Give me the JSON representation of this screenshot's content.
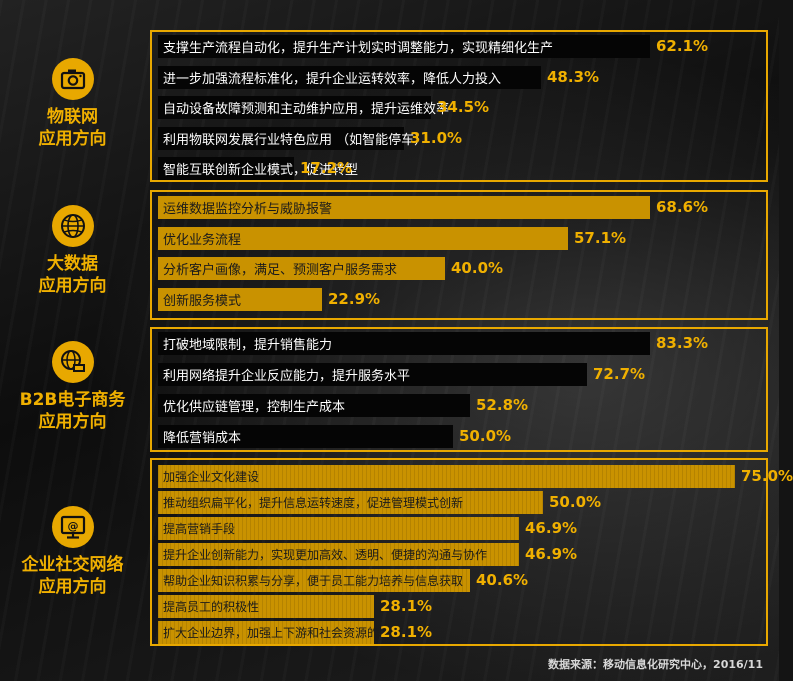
{
  "source": "数据来源：移动信息化研究中心，2016/11",
  "colors": {
    "accent": "#e8a800",
    "bar_dark": "#050505",
    "bar_gold": "#c99200",
    "value_text": "#f0b000"
  },
  "chart_data": [
    {
      "type": "bar",
      "orientation": "horizontal",
      "group": "物联网应用方向",
      "icon": "camera-icon",
      "xlim": [
        0,
        100
      ],
      "categories": [
        "支撑生产流程自动化，提升生产计划实时调整能力，实现精细化生产",
        "进一步加强流程标准化，提升企业运转效率，降低人力投入",
        "自动设备故障预测和主动维护应用，提升运维效率",
        "利用物联网发展行业特色应用 （如智能停车）",
        "智能互联创新企业模式，促进转型"
      ],
      "values": [
        62.1,
        48.3,
        34.5,
        31.0,
        17.2
      ],
      "labels": [
        "62.1%",
        "48.3%",
        "34.5%",
        "31.0%",
        "17.2%"
      ]
    },
    {
      "type": "bar",
      "orientation": "horizontal",
      "group": "大数据应用方向",
      "icon": "globe-icon",
      "xlim": [
        0,
        100
      ],
      "categories": [
        "运维数据监控分析与威胁报警",
        "优化业务流程",
        "分析客户画像，满足、预测客户服务需求",
        "创新服务模式"
      ],
      "values": [
        68.6,
        57.1,
        40.0,
        22.9
      ],
      "labels": [
        "68.6%",
        "57.1%",
        "40.0%",
        "22.9%"
      ]
    },
    {
      "type": "bar",
      "orientation": "horizontal",
      "group": "B2B电子商务应用方向",
      "icon": "web-commerce-icon",
      "xlim": [
        0,
        100
      ],
      "categories": [
        "打破地域限制，提升销售能力",
        "利用网络提升企业反应能力，提升服务水平",
        "优化供应链管理，控制生产成本",
        "降低营销成本"
      ],
      "values": [
        83.3,
        72.7,
        52.8,
        50.0
      ],
      "labels": [
        "83.3%",
        "72.7%",
        "52.8%",
        "50.0%"
      ]
    },
    {
      "type": "bar",
      "orientation": "horizontal",
      "group": "企业社交网络应用方向",
      "icon": "at-monitor-icon",
      "xlim": [
        0,
        100
      ],
      "categories": [
        "加强企业文化建设",
        "推动组织扁平化，提升信息运转速度，促进管理模式创新",
        "提高营销手段",
        "提升企业创新能力，实现更加高效、透明、便捷的沟通与协作",
        "帮助企业知识积累与分享，便于员工能力培养与信息获取",
        "提高员工的积极性",
        "扩大企业边界，加强上下游和社会资源的联接"
      ],
      "values": [
        75.0,
        50.0,
        46.9,
        46.9,
        40.6,
        28.1,
        28.1
      ],
      "labels": [
        "75.0%",
        "50.0%",
        "46.9%",
        "46.9%",
        "40.6%",
        "28.1%",
        "28.1%"
      ]
    }
  ],
  "groups": [
    {
      "title_lines": [
        "物联网",
        "应用方向"
      ]
    },
    {
      "title_lines": [
        "大数据",
        "应用方向"
      ]
    },
    {
      "title_lines": [
        "B2B电子商务",
        "应用方向"
      ]
    },
    {
      "title_lines": [
        "企业社交网络",
        "应用方向"
      ]
    }
  ]
}
